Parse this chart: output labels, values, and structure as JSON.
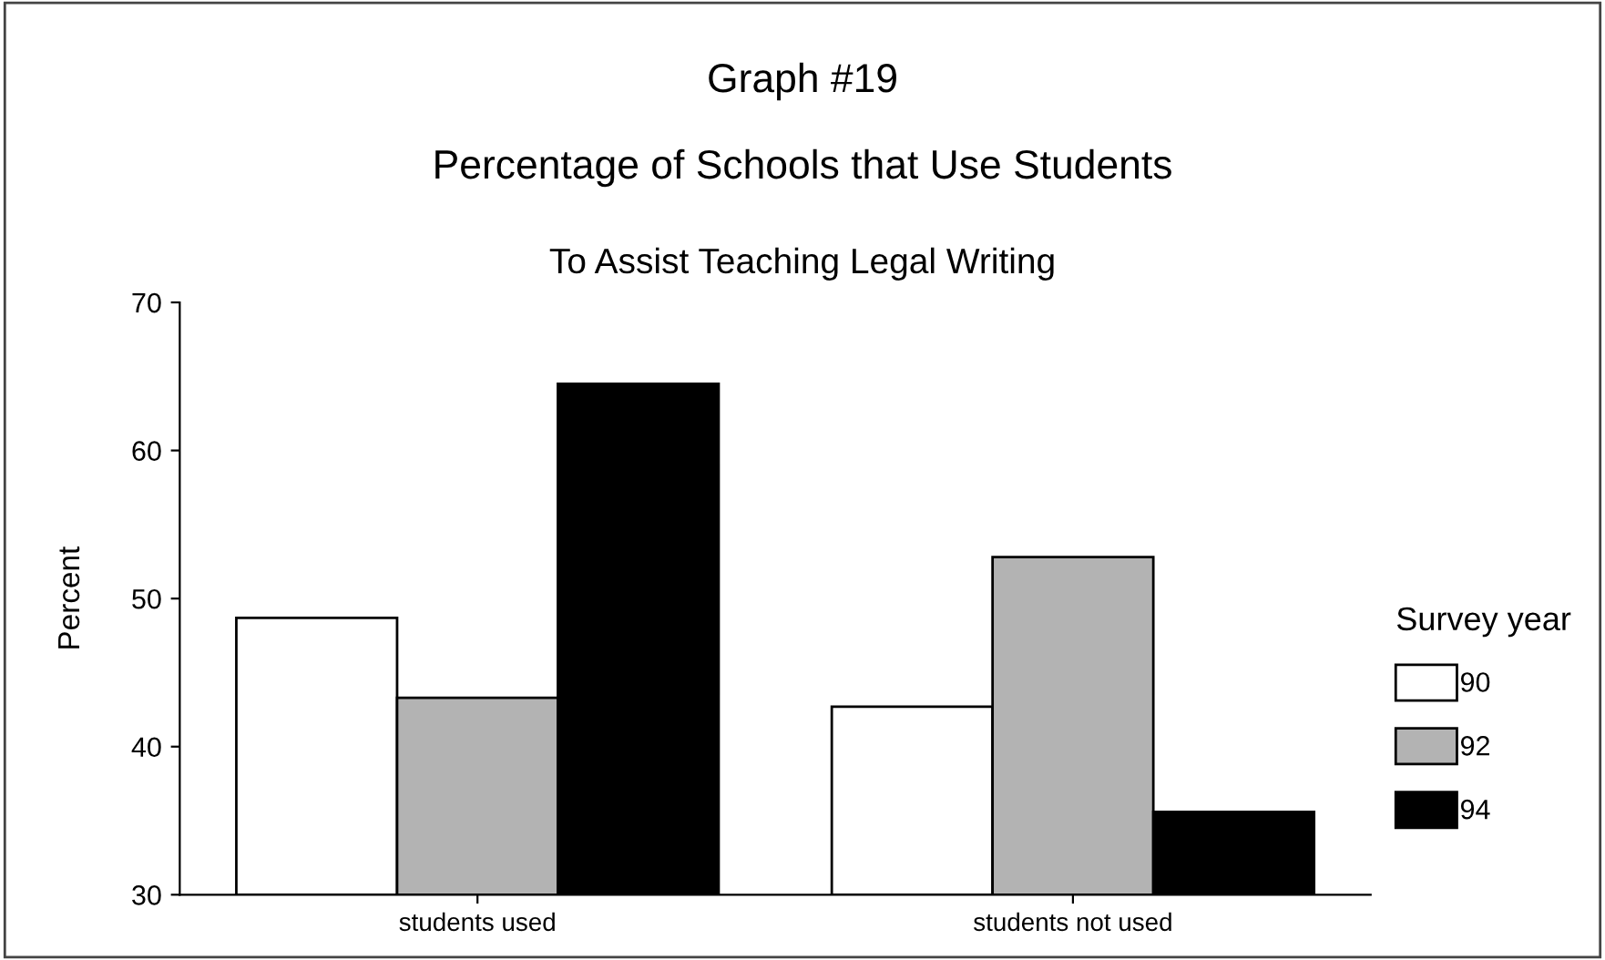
{
  "chart_data": {
    "type": "bar",
    "title": "Graph #19",
    "subtitle": "Percentage of Schools that Use Students",
    "annotations": [
      "To Assist Teaching Legal Writing"
    ],
    "ylabel": "Percent",
    "legend_title": "Survey year",
    "legend": "right",
    "categories": [
      "students used",
      "students not used"
    ],
    "series": [
      {
        "name": "90",
        "color": "#ffffff",
        "values": [
          48.7,
          42.7
        ]
      },
      {
        "name": "92",
        "color": "#b3b3b3",
        "values": [
          43.3,
          52.8
        ]
      },
      {
        "name": "94",
        "color": "#000000",
        "values": [
          64.5,
          35.6
        ]
      }
    ],
    "ylim": [
      30,
      70
    ],
    "yticks": [
      30,
      40,
      50,
      60,
      70
    ],
    "grid": false
  }
}
